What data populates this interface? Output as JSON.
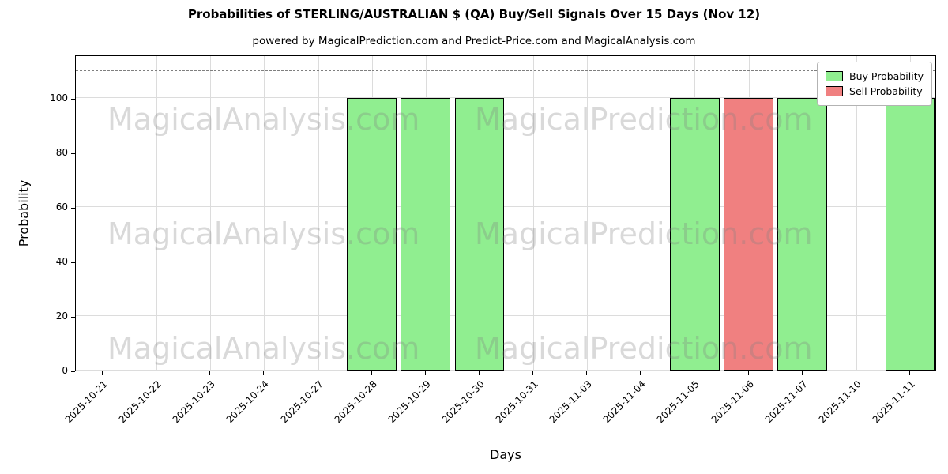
{
  "chart_data": {
    "type": "bar",
    "title": "Probabilities of STERLING/AUSTRALIAN $ (QA) Buy/Sell Signals Over 15 Days (Nov 12)",
    "subtitle": "powered by MagicalPrediction.com and Predict-Price.com and MagicalAnalysis.com",
    "xlabel": "Days",
    "ylabel": "Probability",
    "ylim": [
      0,
      116
    ],
    "yticks": [
      0,
      20,
      40,
      60,
      80,
      100
    ],
    "grid": true,
    "dashed_line_y": 110,
    "legend_position": "upper right",
    "categories": [
      "2025-10-21",
      "2025-10-22",
      "2025-10-23",
      "2025-10-24",
      "2025-10-27",
      "2025-10-28",
      "2025-10-29",
      "2025-10-30",
      "2025-10-31",
      "2025-11-03",
      "2025-11-04",
      "2025-11-05",
      "2025-11-06",
      "2025-11-07",
      "2025-11-10",
      "2025-11-11"
    ],
    "series": [
      {
        "name": "Buy Probability",
        "color": "#90EE90",
        "values": [
          0,
          0,
          0,
          0,
          0,
          100,
          100,
          100,
          0,
          0,
          0,
          100,
          0,
          100,
          0,
          100
        ]
      },
      {
        "name": "Sell Probability",
        "color": "#F08080",
        "values": [
          0,
          0,
          0,
          0,
          0,
          0,
          0,
          0,
          0,
          0,
          0,
          0,
          100,
          0,
          0,
          0
        ]
      }
    ],
    "watermarks": [
      "MagicalAnalysis.com",
      "MagicalPrediction.com"
    ]
  }
}
